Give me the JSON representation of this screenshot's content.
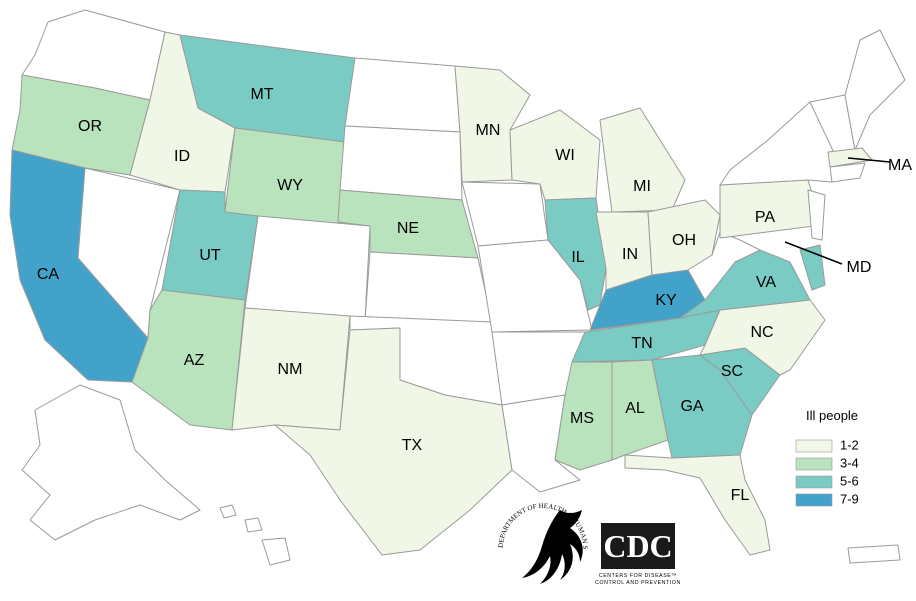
{
  "legend": {
    "title": "Ill people",
    "items": [
      {
        "label": "1-2",
        "color": "#f0f7e6"
      },
      {
        "label": "3-4",
        "color": "#b9e3bd"
      },
      {
        "label": "5-6",
        "color": "#7acbc4"
      },
      {
        "label": "7-9",
        "color": "#43a2ca"
      }
    ]
  },
  "states": {
    "OR": {
      "label": "OR",
      "bin": "3-4"
    },
    "CA": {
      "label": "CA",
      "bin": "7-9"
    },
    "ID": {
      "label": "ID",
      "bin": "1-2"
    },
    "MT": {
      "label": "MT",
      "bin": "5-6"
    },
    "WY": {
      "label": "WY",
      "bin": "3-4"
    },
    "UT": {
      "label": "UT",
      "bin": "5-6"
    },
    "AZ": {
      "label": "AZ",
      "bin": "3-4"
    },
    "NM": {
      "label": "NM",
      "bin": "1-2"
    },
    "NE": {
      "label": "NE",
      "bin": "3-4"
    },
    "TX": {
      "label": "TX",
      "bin": "1-2"
    },
    "MN": {
      "label": "MN",
      "bin": "1-2"
    },
    "WI": {
      "label": "WI",
      "bin": "1-2"
    },
    "IL": {
      "label": "IL",
      "bin": "5-6"
    },
    "MI": {
      "label": "MI",
      "bin": "1-2"
    },
    "IN": {
      "label": "IN",
      "bin": "1-2"
    },
    "OH": {
      "label": "OH",
      "bin": "1-2"
    },
    "KY": {
      "label": "KY",
      "bin": "7-9"
    },
    "TN": {
      "label": "TN",
      "bin": "5-6"
    },
    "MS": {
      "label": "MS",
      "bin": "3-4"
    },
    "AL": {
      "label": "AL",
      "bin": "3-4"
    },
    "GA": {
      "label": "GA",
      "bin": "5-6"
    },
    "FL": {
      "label": "FL",
      "bin": "1-2"
    },
    "SC": {
      "label": "SC",
      "bin": "5-6"
    },
    "NC": {
      "label": "NC",
      "bin": "1-2"
    },
    "VA": {
      "label": "VA",
      "bin": "5-6"
    },
    "PA": {
      "label": "PA",
      "bin": "1-2"
    },
    "MD": {
      "label": "MD",
      "bin": "5-6"
    },
    "MA": {
      "label": "MA",
      "bin": "1-2"
    }
  },
  "logos": {
    "hhs_text": "DEPARTMENT OF HEALTH & HUMAN SERVICES · USA",
    "cdc_wordmark": "CDC",
    "cdc_subtitle_1": "CENTERS FOR DISEASE™",
    "cdc_subtitle_2": "CONTROL AND PREVENTION"
  },
  "colors": {
    "no_cases": "#ffffff",
    "border": "#9a9a9a"
  }
}
